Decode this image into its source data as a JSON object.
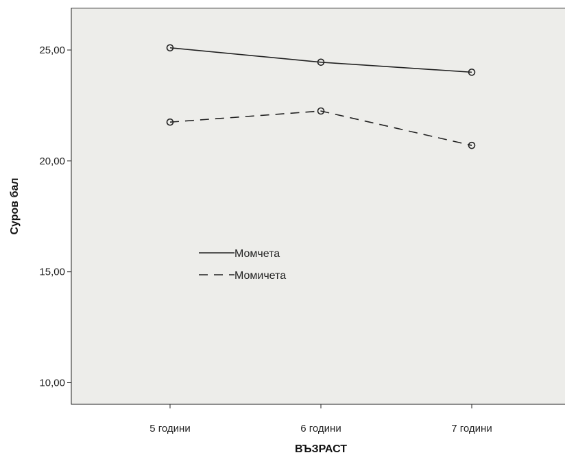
{
  "chart_data": {
    "type": "line",
    "categories": [
      "5 години",
      "6 години",
      "7 години"
    ],
    "xlabel": "ВЪЗРАСТ",
    "ylabel": "Суров бал",
    "ylim": [
      9.0,
      27.0
    ],
    "yticks": [
      10,
      15,
      20,
      25
    ],
    "ytick_labels": [
      "10,00",
      "15,00",
      "20,00",
      "25,00"
    ],
    "grid": false,
    "legend_position": "center-left",
    "series": [
      {
        "name": "Момчета",
        "values": [
          25.1,
          24.45,
          24.0
        ],
        "dash": "solid",
        "marker": "circle",
        "color": "#222222"
      },
      {
        "name": "Момичета",
        "values": [
          21.75,
          22.25,
          20.7
        ],
        "dash": "dashed",
        "marker": "circle",
        "color": "#222222"
      }
    ]
  }
}
